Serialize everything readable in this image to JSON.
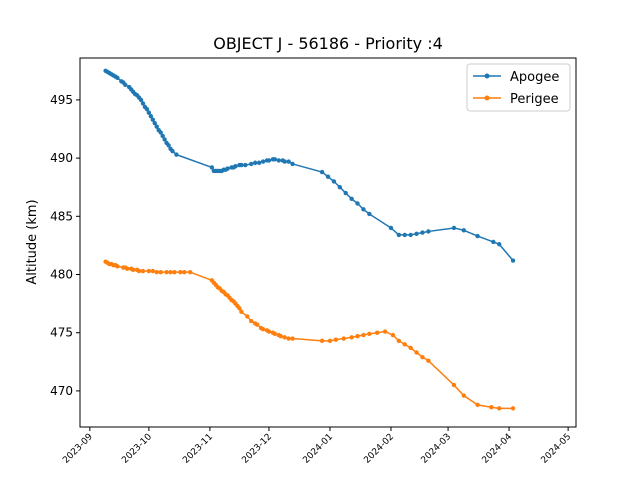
{
  "chart_data": {
    "type": "line",
    "title": "OBJECT J - 56186 - Priority :4",
    "xlabel": "",
    "ylabel": "Altitude (km)",
    "x_range": [
      "2023-08-27",
      "2024-05-05"
    ],
    "ylim": [
      466.9,
      498.6
    ],
    "yticks": [
      470,
      475,
      480,
      485,
      490,
      495
    ],
    "xticks": [
      "2023-09",
      "2023-10",
      "2023-11",
      "2023-12",
      "2024-01",
      "2024-02",
      "2024-03",
      "2024-04",
      "2024-05"
    ],
    "grid": false,
    "legend_position": "top-right",
    "series": [
      {
        "name": "Apogee",
        "color": "#1f77b4",
        "points": [
          [
            "2023-09-09",
            497.5
          ],
          [
            "2023-09-10",
            497.4
          ],
          [
            "2023-09-11",
            497.3
          ],
          [
            "2023-09-12",
            497.2
          ],
          [
            "2023-09-13",
            497.1
          ],
          [
            "2023-09-14",
            497.0
          ],
          [
            "2023-09-15",
            496.9
          ],
          [
            "2023-09-17",
            496.6
          ],
          [
            "2023-09-18",
            496.5
          ],
          [
            "2023-09-19",
            496.3
          ],
          [
            "2023-09-21",
            496.1
          ],
          [
            "2023-09-22",
            495.9
          ],
          [
            "2023-09-23",
            495.7
          ],
          [
            "2023-09-24",
            495.5
          ],
          [
            "2023-09-25",
            495.4
          ],
          [
            "2023-09-26",
            495.2
          ],
          [
            "2023-09-27",
            495.0
          ],
          [
            "2023-09-28",
            494.7
          ],
          [
            "2023-09-29",
            494.4
          ],
          [
            "2023-09-30",
            494.2
          ],
          [
            "2023-10-01",
            493.9
          ],
          [
            "2023-10-02",
            493.6
          ],
          [
            "2023-10-03",
            493.3
          ],
          [
            "2023-10-04",
            493.0
          ],
          [
            "2023-10-05",
            492.7
          ],
          [
            "2023-10-06",
            492.4
          ],
          [
            "2023-10-07",
            492.2
          ],
          [
            "2023-10-08",
            491.9
          ],
          [
            "2023-10-09",
            491.6
          ],
          [
            "2023-10-10",
            491.3
          ],
          [
            "2023-10-11",
            491.1
          ],
          [
            "2023-10-12",
            490.8
          ],
          [
            "2023-10-13",
            490.6
          ],
          [
            "2023-10-15",
            490.3
          ],
          [
            "2023-11-02",
            489.2
          ],
          [
            "2023-11-03",
            488.9
          ],
          [
            "2023-11-04",
            488.9
          ],
          [
            "2023-11-05",
            488.9
          ],
          [
            "2023-11-06",
            488.9
          ],
          [
            "2023-11-07",
            488.9
          ],
          [
            "2023-11-08",
            489.0
          ],
          [
            "2023-11-09",
            489.0
          ],
          [
            "2023-11-10",
            489.1
          ],
          [
            "2023-11-12",
            489.2
          ],
          [
            "2023-11-13",
            489.2
          ],
          [
            "2023-11-14",
            489.3
          ],
          [
            "2023-11-16",
            489.4
          ],
          [
            "2023-11-17",
            489.4
          ],
          [
            "2023-11-19",
            489.4
          ],
          [
            "2023-11-22",
            489.5
          ],
          [
            "2023-11-24",
            489.6
          ],
          [
            "2023-11-26",
            489.6
          ],
          [
            "2023-11-28",
            489.7
          ],
          [
            "2023-11-30",
            489.8
          ],
          [
            "2023-12-01",
            489.8
          ],
          [
            "2023-12-03",
            489.9
          ],
          [
            "2023-12-04",
            489.9
          ],
          [
            "2023-12-06",
            489.8
          ],
          [
            "2023-12-08",
            489.8
          ],
          [
            "2023-12-09",
            489.7
          ],
          [
            "2023-12-11",
            489.7
          ],
          [
            "2023-12-13",
            489.5
          ],
          [
            "2023-12-28",
            488.8
          ],
          [
            "2023-12-31",
            488.4
          ],
          [
            "2024-01-03",
            488.0
          ],
          [
            "2024-01-06",
            487.5
          ],
          [
            "2024-01-09",
            487.0
          ],
          [
            "2024-01-12",
            486.5
          ],
          [
            "2024-01-15",
            486.1
          ],
          [
            "2024-01-18",
            485.6
          ],
          [
            "2024-01-21",
            485.2
          ],
          [
            "2024-02-01",
            484.0
          ],
          [
            "2024-02-05",
            483.4
          ],
          [
            "2024-02-08",
            483.4
          ],
          [
            "2024-02-11",
            483.4
          ],
          [
            "2024-02-14",
            483.5
          ],
          [
            "2024-02-17",
            483.6
          ],
          [
            "2024-02-20",
            483.7
          ],
          [
            "2024-03-04",
            484.0
          ],
          [
            "2024-03-09",
            483.8
          ],
          [
            "2024-03-16",
            483.3
          ],
          [
            "2024-03-24",
            482.8
          ],
          [
            "2024-03-27",
            482.6
          ],
          [
            "2024-04-03",
            481.2
          ]
        ]
      },
      {
        "name": "Perigee",
        "color": "#ff7f0e",
        "points": [
          [
            "2023-09-09",
            481.1
          ],
          [
            "2023-09-10",
            481.0
          ],
          [
            "2023-09-11",
            480.9
          ],
          [
            "2023-09-12",
            480.9
          ],
          [
            "2023-09-13",
            480.8
          ],
          [
            "2023-09-14",
            480.8
          ],
          [
            "2023-09-15",
            480.7
          ],
          [
            "2023-09-18",
            480.6
          ],
          [
            "2023-09-19",
            480.6
          ],
          [
            "2023-09-20",
            480.5
          ],
          [
            "2023-09-22",
            480.5
          ],
          [
            "2023-09-23",
            480.4
          ],
          [
            "2023-09-25",
            480.4
          ],
          [
            "2023-09-26",
            480.3
          ],
          [
            "2023-09-28",
            480.3
          ],
          [
            "2023-10-01",
            480.3
          ],
          [
            "2023-10-03",
            480.3
          ],
          [
            "2023-10-05",
            480.2
          ],
          [
            "2023-10-07",
            480.2
          ],
          [
            "2023-10-10",
            480.2
          ],
          [
            "2023-10-12",
            480.2
          ],
          [
            "2023-10-14",
            480.2
          ],
          [
            "2023-10-17",
            480.2
          ],
          [
            "2023-10-19",
            480.2
          ],
          [
            "2023-10-22",
            480.2
          ],
          [
            "2023-11-02",
            479.5
          ],
          [
            "2023-11-03",
            479.3
          ],
          [
            "2023-11-04",
            479.1
          ],
          [
            "2023-11-05",
            478.9
          ],
          [
            "2023-11-06",
            478.8
          ],
          [
            "2023-11-07",
            478.6
          ],
          [
            "2023-11-08",
            478.5
          ],
          [
            "2023-11-09",
            478.3
          ],
          [
            "2023-11-10",
            478.2
          ],
          [
            "2023-11-11",
            478.0
          ],
          [
            "2023-11-12",
            477.8
          ],
          [
            "2023-11-13",
            477.7
          ],
          [
            "2023-11-14",
            477.5
          ],
          [
            "2023-11-15",
            477.3
          ],
          [
            "2023-11-16",
            477.1
          ],
          [
            "2023-11-17",
            476.8
          ],
          [
            "2023-11-20",
            476.4
          ],
          [
            "2023-11-22",
            476.0
          ],
          [
            "2023-11-24",
            475.8
          ],
          [
            "2023-11-25",
            475.7
          ],
          [
            "2023-11-27",
            475.4
          ],
          [
            "2023-11-28",
            475.3
          ],
          [
            "2023-11-30",
            475.2
          ],
          [
            "2023-12-01",
            475.1
          ],
          [
            "2023-12-03",
            475.0
          ],
          [
            "2023-12-04",
            474.9
          ],
          [
            "2023-12-06",
            474.8
          ],
          [
            "2023-12-07",
            474.7
          ],
          [
            "2023-12-09",
            474.6
          ],
          [
            "2023-12-11",
            474.5
          ],
          [
            "2023-12-13",
            474.5
          ],
          [
            "2023-12-28",
            474.3
          ],
          [
            "2024-01-01",
            474.3
          ],
          [
            "2024-01-04",
            474.4
          ],
          [
            "2024-01-08",
            474.5
          ],
          [
            "2024-01-12",
            474.6
          ],
          [
            "2024-01-15",
            474.7
          ],
          [
            "2024-01-18",
            474.8
          ],
          [
            "2024-01-21",
            474.9
          ],
          [
            "2024-01-25",
            475.0
          ],
          [
            "2024-01-29",
            475.1
          ],
          [
            "2024-02-02",
            474.8
          ],
          [
            "2024-02-05",
            474.3
          ],
          [
            "2024-02-08",
            474.0
          ],
          [
            "2024-02-11",
            473.7
          ],
          [
            "2024-02-14",
            473.3
          ],
          [
            "2024-02-17",
            472.9
          ],
          [
            "2024-02-20",
            472.6
          ],
          [
            "2024-03-04",
            470.5
          ],
          [
            "2024-03-09",
            469.6
          ],
          [
            "2024-03-16",
            468.8
          ],
          [
            "2024-03-23",
            468.6
          ],
          [
            "2024-03-27",
            468.5
          ],
          [
            "2024-04-03",
            468.5
          ]
        ]
      }
    ]
  }
}
